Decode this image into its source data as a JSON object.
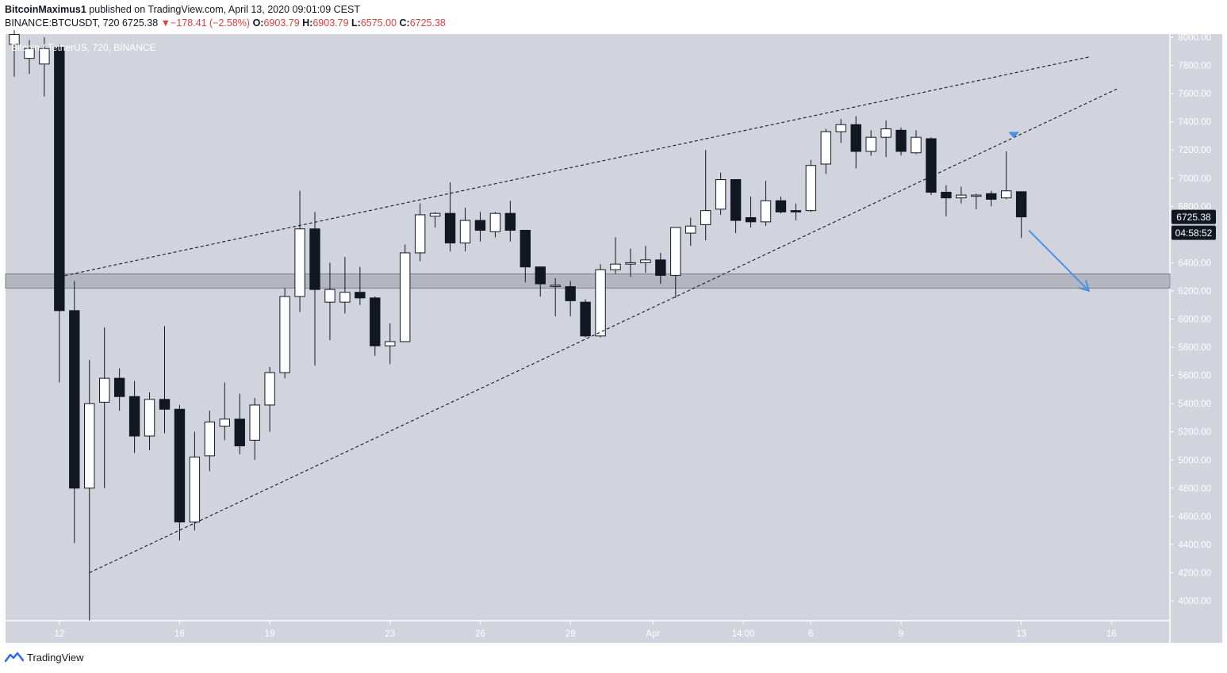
{
  "header": {
    "author": "BitcoinMaximus1",
    "published_text": "published on TradingView.com, April 13, 2020 09:01:09 CEST",
    "symbol": "BINANCE:BTCUSDT, 720",
    "last": "6725.38",
    "change_arrow": "▼",
    "change": "−178.41 (−2.58%)",
    "open_label": "O:",
    "open": "6903.79",
    "high_label": "H:",
    "high": "6903.79",
    "low_label": "L:",
    "low": "6575.00",
    "close_label": "C:",
    "close": "6725.38"
  },
  "chart_title": "Bitcoin / TetherUS, 720, BINANCE",
  "price_tag": "6725.38",
  "countdown_tag": "04:58:52",
  "footer": {
    "brand": "TradingView",
    "logo_icon": "tradingview-logo-icon"
  },
  "colors": {
    "background": "#d1d4dc",
    "bull_candle": "#ffffff",
    "bear_candle": "#131722",
    "trendline": "#131722",
    "arrow": "#4a90e2",
    "zone": "#9598a1"
  },
  "chart_data": {
    "type": "candlestick",
    "interval": "720",
    "y_range": [
      3850,
      8050
    ],
    "y_ticks": [
      "8000.00",
      "7800.00",
      "7600.00",
      "7400.00",
      "7200.00",
      "7000.00",
      "6800.00",
      "6600.00",
      "6400.00",
      "6200.00",
      "6000.00",
      "5800.00",
      "5600.00",
      "5400.00",
      "5200.00",
      "5000.00",
      "4800.00",
      "4600.00",
      "4400.00",
      "4200.00",
      "4000.00"
    ],
    "x_ticks": [
      "12",
      "16",
      "19",
      "23",
      "26",
      "29",
      "Apr",
      "14:00",
      "6",
      "9",
      "13",
      "16"
    ],
    "grid": false,
    "candles": [
      {
        "o": 7950,
        "h": 8050,
        "l": 7720,
        "c": 8020
      },
      {
        "o": 7850,
        "h": 7980,
        "l": 7740,
        "c": 7920
      },
      {
        "o": 7810,
        "h": 8000,
        "l": 7580,
        "c": 7920
      },
      {
        "o": 7930,
        "h": 7950,
        "l": 5550,
        "c": 6060
      },
      {
        "o": 6060,
        "h": 6270,
        "l": 4410,
        "c": 4800
      },
      {
        "o": 4800,
        "h": 5710,
        "l": 3860,
        "c": 5400
      },
      {
        "o": 5410,
        "h": 5940,
        "l": 4800,
        "c": 5580
      },
      {
        "o": 5580,
        "h": 5650,
        "l": 5350,
        "c": 5450
      },
      {
        "o": 5450,
        "h": 5560,
        "l": 5050,
        "c": 5170
      },
      {
        "o": 5170,
        "h": 5480,
        "l": 5070,
        "c": 5430
      },
      {
        "o": 5430,
        "h": 5950,
        "l": 5190,
        "c": 5360
      },
      {
        "o": 5360,
        "h": 5390,
        "l": 4430,
        "c": 4560
      },
      {
        "o": 4560,
        "h": 5200,
        "l": 4500,
        "c": 5020
      },
      {
        "o": 5030,
        "h": 5350,
        "l": 4920,
        "c": 5270
      },
      {
        "o": 5240,
        "h": 5550,
        "l": 5140,
        "c": 5290
      },
      {
        "o": 5290,
        "h": 5470,
        "l": 5040,
        "c": 5100
      },
      {
        "o": 5140,
        "h": 5440,
        "l": 5000,
        "c": 5390
      },
      {
        "o": 5390,
        "h": 5660,
        "l": 5200,
        "c": 5620
      },
      {
        "o": 5620,
        "h": 6220,
        "l": 5580,
        "c": 6160
      },
      {
        "o": 6160,
        "h": 6910,
        "l": 6050,
        "c": 6640
      },
      {
        "o": 6640,
        "h": 6760,
        "l": 5670,
        "c": 6210
      },
      {
        "o": 6120,
        "h": 6400,
        "l": 5850,
        "c": 6210
      },
      {
        "o": 6120,
        "h": 6440,
        "l": 6040,
        "c": 6190
      },
      {
        "o": 6190,
        "h": 6370,
        "l": 6100,
        "c": 6150
      },
      {
        "o": 6150,
        "h": 6160,
        "l": 5740,
        "c": 5810
      },
      {
        "o": 5810,
        "h": 5970,
        "l": 5680,
        "c": 5840
      },
      {
        "o": 5840,
        "h": 6530,
        "l": 5840,
        "c": 6470
      },
      {
        "o": 6470,
        "h": 6820,
        "l": 6410,
        "c": 6740
      },
      {
        "o": 6730,
        "h": 6760,
        "l": 6650,
        "c": 6750
      },
      {
        "o": 6750,
        "h": 6970,
        "l": 6480,
        "c": 6540
      },
      {
        "o": 6540,
        "h": 6790,
        "l": 6480,
        "c": 6700
      },
      {
        "o": 6700,
        "h": 6760,
        "l": 6550,
        "c": 6630
      },
      {
        "o": 6620,
        "h": 6760,
        "l": 6580,
        "c": 6750
      },
      {
        "o": 6750,
        "h": 6840,
        "l": 6550,
        "c": 6630
      },
      {
        "o": 6630,
        "h": 6630,
        "l": 6260,
        "c": 6370
      },
      {
        "o": 6370,
        "h": 6370,
        "l": 6160,
        "c": 6250
      },
      {
        "o": 6240,
        "h": 6290,
        "l": 6020,
        "c": 6240
      },
      {
        "o": 6230,
        "h": 6270,
        "l": 6020,
        "c": 6130
      },
      {
        "o": 6120,
        "h": 6140,
        "l": 5870,
        "c": 5880
      },
      {
        "o": 5880,
        "h": 6390,
        "l": 5870,
        "c": 6350
      },
      {
        "o": 6350,
        "h": 6580,
        "l": 6320,
        "c": 6390
      },
      {
        "o": 6390,
        "h": 6500,
        "l": 6300,
        "c": 6400
      },
      {
        "o": 6400,
        "h": 6520,
        "l": 6330,
        "c": 6420
      },
      {
        "o": 6420,
        "h": 6470,
        "l": 6250,
        "c": 6310
      },
      {
        "o": 6310,
        "h": 6640,
        "l": 6150,
        "c": 6650
      },
      {
        "o": 6610,
        "h": 6720,
        "l": 6520,
        "c": 6660
      },
      {
        "o": 6670,
        "h": 7200,
        "l": 6560,
        "c": 6770
      },
      {
        "o": 6780,
        "h": 7040,
        "l": 6740,
        "c": 6990
      },
      {
        "o": 6990,
        "h": 6990,
        "l": 6610,
        "c": 6700
      },
      {
        "o": 6720,
        "h": 6870,
        "l": 6650,
        "c": 6690
      },
      {
        "o": 6690,
        "h": 6980,
        "l": 6660,
        "c": 6840
      },
      {
        "o": 6840,
        "h": 6870,
        "l": 6750,
        "c": 6760
      },
      {
        "o": 6770,
        "h": 6820,
        "l": 6700,
        "c": 6760
      },
      {
        "o": 6770,
        "h": 7130,
        "l": 6760,
        "c": 7090
      },
      {
        "o": 7100,
        "h": 7350,
        "l": 7030,
        "c": 7330
      },
      {
        "o": 7330,
        "h": 7420,
        "l": 7250,
        "c": 7380
      },
      {
        "o": 7380,
        "h": 7440,
        "l": 7070,
        "c": 7190
      },
      {
        "o": 7190,
        "h": 7340,
        "l": 7160,
        "c": 7290
      },
      {
        "o": 7290,
        "h": 7410,
        "l": 7150,
        "c": 7350
      },
      {
        "o": 7340,
        "h": 7360,
        "l": 7160,
        "c": 7190
      },
      {
        "o": 7180,
        "h": 7340,
        "l": 7170,
        "c": 7290
      },
      {
        "o": 7280,
        "h": 7290,
        "l": 6880,
        "c": 6900
      },
      {
        "o": 6900,
        "h": 6950,
        "l": 6730,
        "c": 6860
      },
      {
        "o": 6860,
        "h": 6940,
        "l": 6820,
        "c": 6880
      },
      {
        "o": 6880,
        "h": 6890,
        "l": 6780,
        "c": 6880
      },
      {
        "o": 6890,
        "h": 6910,
        "l": 6800,
        "c": 6850
      },
      {
        "o": 6860,
        "h": 7190,
        "l": 6850,
        "c": 6910
      },
      {
        "o": 6904,
        "h": 6904,
        "l": 6575,
        "c": 6725
      }
    ],
    "support_zone": [
      6220,
      6320
    ],
    "trendlines": [
      {
        "from": {
          "bar": 3,
          "price": 6300
        },
        "to": {
          "bar": 71.5,
          "price": 7860
        }
      },
      {
        "from": {
          "bar": 5,
          "price": 4200
        },
        "to": {
          "bar": 73.5,
          "price": 7640
        }
      }
    ],
    "arrow": {
      "from": {
        "bar": 67.5,
        "price": 6630
      },
      "to": {
        "bar": 71.5,
        "price": 6200
      }
    },
    "marker": {
      "bar": 66.5,
      "price": 7300
    },
    "last_price": 6725.38
  }
}
